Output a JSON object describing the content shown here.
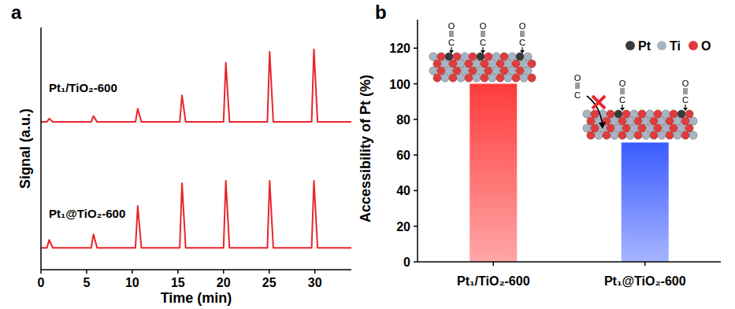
{
  "chart_data": [
    {
      "type": "line",
      "label": "a",
      "x_label": "Time (min)",
      "y_label": "Signal (a.u.)",
      "x": [
        0,
        0.65,
        0.9,
        1.3,
        5.5,
        5.75,
        6.15,
        10.35,
        10.6,
        11.0,
        15.2,
        15.45,
        15.85,
        20.0,
        20.25,
        20.65,
        24.8,
        25.05,
        25.45,
        29.65,
        29.9,
        30.3,
        34
      ],
      "series": [
        {
          "name": "Pt₁/TiO₂-600",
          "color": "#e8262a",
          "values": [
            61,
            61,
            62.4,
            61,
            61,
            63.5,
            61,
            61,
            66.5,
            61,
            61,
            72,
            61,
            61,
            85.5,
            61,
            61,
            90,
            61,
            61,
            91,
            61,
            61
          ]
        },
        {
          "name": "Pt₁@TiO₂-600",
          "color": "#e8262a",
          "values": [
            9,
            9,
            12.3,
            9,
            9,
            14.6,
            9,
            9,
            26.3,
            9,
            9,
            35.7,
            9,
            9,
            36.7,
            9,
            9,
            36.7,
            9,
            9,
            36.7,
            9,
            9
          ]
        }
      ],
      "xlim": [
        0,
        34
      ],
      "xticks": [
        0,
        5,
        10,
        15,
        20,
        25,
        30
      ],
      "ylim": [
        0,
        100
      ],
      "tick_labels": "x"
    },
    {
      "type": "bar",
      "label": "b",
      "y_label": "Accessibility of Pt (%)",
      "categories": [
        "Pt₁/TiO₂-600",
        "Pt₁@TiO₂-600"
      ],
      "values": [
        100,
        67
      ],
      "colors": [
        "#ff3b3b",
        "#3a5bff"
      ],
      "ylim": [
        0,
        136
      ],
      "yticks": [
        0,
        20,
        40,
        60,
        80,
        100,
        120
      ],
      "annotations": [
        {
          "text": "Pt",
          "color": "#3a3a3a"
        },
        {
          "text": "Ti",
          "color": "#a8b4c4"
        },
        {
          "text": "O",
          "color": "#e23b3b"
        }
      ],
      "adsorbate_labels": [
        "O",
        "C"
      ]
    }
  ]
}
